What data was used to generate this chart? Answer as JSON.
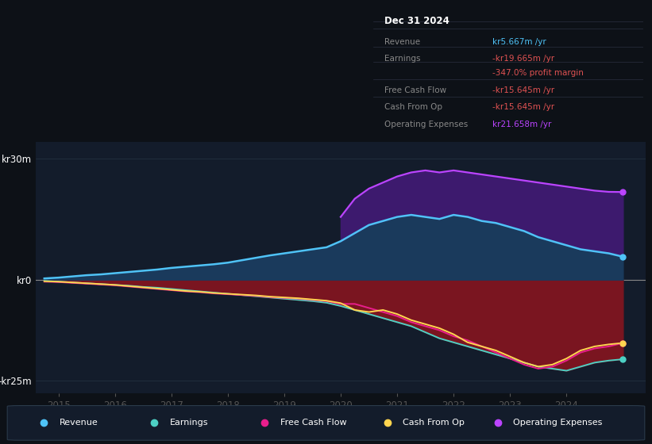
{
  "bg_color": "#0d1117",
  "plot_bg_color": "#131c2b",
  "ylim": [
    -28,
    34
  ],
  "xlim": [
    2014.6,
    2025.4
  ],
  "xticks": [
    2015,
    2016,
    2017,
    2018,
    2019,
    2020,
    2021,
    2022,
    2023,
    2024
  ],
  "ytick_labels": [
    "kr30m",
    "kr0",
    "-kr25m"
  ],
  "ytick_vals": [
    30,
    0,
    -25
  ],
  "years": [
    2014.75,
    2015.0,
    2015.25,
    2015.5,
    2015.75,
    2016.0,
    2016.25,
    2016.5,
    2016.75,
    2017.0,
    2017.25,
    2017.5,
    2017.75,
    2018.0,
    2018.25,
    2018.5,
    2018.75,
    2019.0,
    2019.25,
    2019.5,
    2019.75,
    2020.0,
    2020.25,
    2020.5,
    2020.75,
    2021.0,
    2021.25,
    2021.5,
    2021.75,
    2022.0,
    2022.25,
    2022.5,
    2022.75,
    2023.0,
    2023.25,
    2023.5,
    2023.75,
    2024.0,
    2024.25,
    2024.5,
    2024.75,
    2025.0
  ],
  "revenue": [
    0.3,
    0.5,
    0.8,
    1.1,
    1.3,
    1.6,
    1.9,
    2.2,
    2.5,
    2.9,
    3.2,
    3.5,
    3.8,
    4.2,
    4.8,
    5.4,
    6.0,
    6.5,
    7.0,
    7.5,
    8.0,
    9.5,
    11.5,
    13.5,
    14.5,
    15.5,
    16.0,
    15.5,
    15.0,
    16.0,
    15.5,
    14.5,
    14.0,
    13.0,
    12.0,
    10.5,
    9.5,
    8.5,
    7.5,
    7.0,
    6.5,
    5.667
  ],
  "earnings": [
    -0.3,
    -0.5,
    -0.7,
    -0.9,
    -1.1,
    -1.3,
    -1.5,
    -1.8,
    -2.0,
    -2.3,
    -2.6,
    -2.9,
    -3.2,
    -3.5,
    -3.8,
    -4.1,
    -4.4,
    -4.7,
    -5.0,
    -5.3,
    -5.7,
    -6.5,
    -7.5,
    -8.5,
    -9.5,
    -10.5,
    -11.5,
    -13.0,
    -14.5,
    -15.5,
    -16.5,
    -17.5,
    -18.5,
    -19.5,
    -20.5,
    -21.5,
    -22.0,
    -22.5,
    -21.5,
    -20.5,
    -20.0,
    -19.665
  ],
  "free_cash_flow": [
    -0.5,
    -0.6,
    -0.8,
    -1.0,
    -1.2,
    -1.4,
    -1.7,
    -2.0,
    -2.3,
    -2.6,
    -2.9,
    -3.1,
    -3.4,
    -3.6,
    -3.8,
    -4.0,
    -4.3,
    -4.5,
    -4.7,
    -5.0,
    -5.3,
    -6.0,
    -6.0,
    -7.0,
    -8.0,
    -9.0,
    -10.5,
    -11.5,
    -12.5,
    -14.0,
    -15.0,
    -16.5,
    -18.0,
    -19.5,
    -21.0,
    -22.0,
    -21.5,
    -20.0,
    -18.0,
    -17.0,
    -16.5,
    -15.645
  ],
  "cash_from_op": [
    -0.4,
    -0.5,
    -0.7,
    -0.9,
    -1.1,
    -1.3,
    -1.6,
    -1.9,
    -2.2,
    -2.5,
    -2.8,
    -3.0,
    -3.3,
    -3.5,
    -3.7,
    -3.9,
    -4.2,
    -4.4,
    -4.6,
    -4.9,
    -5.2,
    -5.8,
    -7.5,
    -8.0,
    -7.5,
    -8.5,
    -10.0,
    -11.0,
    -12.0,
    -13.5,
    -15.5,
    -16.5,
    -17.5,
    -19.0,
    -20.5,
    -21.5,
    -21.0,
    -19.5,
    -17.5,
    -16.5,
    -16.0,
    -15.645
  ],
  "opex": [
    null,
    null,
    null,
    null,
    null,
    null,
    null,
    null,
    null,
    null,
    null,
    null,
    null,
    null,
    null,
    null,
    null,
    null,
    null,
    null,
    null,
    15.5,
    20.0,
    22.5,
    24.0,
    25.5,
    26.5,
    27.0,
    26.5,
    27.0,
    26.5,
    26.0,
    25.5,
    25.0,
    24.5,
    24.0,
    23.5,
    23.0,
    22.5,
    22.0,
    21.7,
    21.658
  ],
  "revenue_color": "#4fc3f7",
  "earnings_color": "#4dd0c4",
  "fcf_color": "#e91e8c",
  "cfop_color": "#ffd54f",
  "opex_color": "#bb44ff",
  "fill_revenue_pos": "#1a3a5c",
  "fill_opex_pos": "#3d1a6e",
  "fill_earnings_neg": "#7a1520",
  "info_box": {
    "title": "Dec 31 2024",
    "rows": [
      {
        "label": "Revenue",
        "value": "kr5.667m /yr",
        "lc": "#888888",
        "vc": "#4fc3f7"
      },
      {
        "label": "Earnings",
        "value": "-kr19.665m /yr",
        "lc": "#888888",
        "vc": "#e05252"
      },
      {
        "label": "",
        "value": "-347.0% profit margin",
        "lc": "#888888",
        "vc": "#e05252",
        "indent": true
      },
      {
        "label": "Free Cash Flow",
        "value": "-kr15.645m /yr",
        "lc": "#888888",
        "vc": "#e05252"
      },
      {
        "label": "Cash From Op",
        "value": "-kr15.645m /yr",
        "lc": "#888888",
        "vc": "#e05252"
      },
      {
        "label": "Operating Expenses",
        "value": "kr21.658m /yr",
        "lc": "#888888",
        "vc": "#bb44ff"
      }
    ]
  },
  "legend": [
    {
      "label": "Revenue",
      "color": "#4fc3f7"
    },
    {
      "label": "Earnings",
      "color": "#4dd0c4"
    },
    {
      "label": "Free Cash Flow",
      "color": "#e91e8c"
    },
    {
      "label": "Cash From Op",
      "color": "#ffd54f"
    },
    {
      "label": "Operating Expenses",
      "color": "#bb44ff"
    }
  ]
}
